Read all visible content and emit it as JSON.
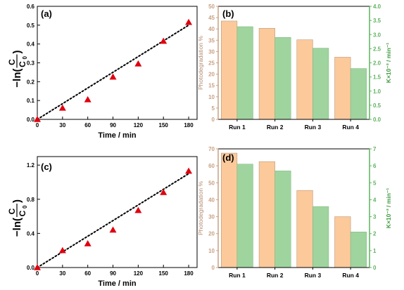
{
  "chart_data": [
    {
      "panel": "(a)",
      "type": "scatter",
      "xlabel": "Time / min",
      "ylabel": {
        "prefix": "−ln(",
        "num": "C",
        "den": "C",
        "den_sub": "0",
        "suffix": ")"
      },
      "xlim": [
        0,
        190
      ],
      "ylim": [
        0,
        0.6
      ],
      "xticks": [
        "0",
        "30",
        "60",
        "90",
        "120",
        "150",
        "180"
      ],
      "xtick_values": [
        0,
        30,
        60,
        90,
        120,
        150,
        180
      ],
      "yticks": [
        "0.0",
        "0.1",
        "0.2",
        "0.3",
        "0.4",
        "0.5",
        "0.6"
      ],
      "ytick_values": [
        0.0,
        0.1,
        0.2,
        0.3,
        0.4,
        0.5,
        0.6
      ],
      "x": [
        0,
        30,
        60,
        90,
        120,
        150,
        180
      ],
      "y": [
        0.0,
        0.06,
        0.105,
        0.225,
        0.295,
        0.415,
        0.515
      ],
      "fit": {
        "x": [
          0,
          180
        ],
        "y": [
          0.0,
          0.5
        ]
      },
      "marker_color": "#e0000f",
      "fit_color": "#000000"
    },
    {
      "panel": "(b)",
      "type": "bar",
      "categories": [
        "Run 1",
        "Run 2",
        "Run 3",
        "Run 4"
      ],
      "ylabel_left": "Photodegradation %",
      "ylabel_right": "K×10⁻³ / min⁻¹",
      "ylim_left": [
        0,
        50
      ],
      "ylim_right": [
        0,
        4.0
      ],
      "yticks_left": [
        "0",
        "5",
        "10",
        "15",
        "20",
        "25",
        "30",
        "35",
        "40",
        "45",
        "50"
      ],
      "ytick_values_left": [
        0,
        5,
        10,
        15,
        20,
        25,
        30,
        35,
        40,
        45,
        50
      ],
      "yticks_right": [
        "0.0",
        "0.5",
        "1.0",
        "1.5",
        "2.0",
        "2.5",
        "3.0",
        "3.5",
        "4.0"
      ],
      "ytick_values_right": [
        0.0,
        0.5,
        1.0,
        1.5,
        2.0,
        2.5,
        3.0,
        3.5,
        4.0
      ],
      "series": [
        {
          "axis": "left",
          "color": "#fcc99b",
          "values": [
            43.5,
            40.3,
            35.2,
            27.5
          ]
        },
        {
          "axis": "right",
          "color": "#9fd49f",
          "values": [
            3.28,
            2.9,
            2.52,
            1.8
          ]
        }
      ]
    },
    {
      "panel": "(c)",
      "type": "scatter",
      "xlabel": "Time / min",
      "ylabel": {
        "prefix": "−ln(",
        "num": "C",
        "den": "C",
        "den_sub": "0",
        "suffix": ")"
      },
      "xlim": [
        0,
        190
      ],
      "ylim": [
        0,
        1.3
      ],
      "xticks": [
        "0",
        "30",
        "60",
        "90",
        "120",
        "150",
        "180"
      ],
      "xtick_values": [
        0,
        30,
        60,
        90,
        120,
        150,
        180
      ],
      "yticks": [
        "0.0",
        "0.4",
        "0.8",
        "1.2"
      ],
      "ytick_values": [
        0.0,
        0.4,
        0.8,
        1.2
      ],
      "x": [
        0,
        30,
        60,
        90,
        120,
        150,
        180
      ],
      "y": [
        0.0,
        0.2,
        0.28,
        0.44,
        0.67,
        0.88,
        1.13
      ],
      "fit": {
        "x": [
          0,
          180
        ],
        "y": [
          0.0,
          1.1
        ]
      },
      "marker_color": "#e0000f",
      "fit_color": "#000000"
    },
    {
      "panel": "(d)",
      "type": "bar",
      "categories": [
        "Run 1",
        "Run 2",
        "Run 3",
        "Run 4"
      ],
      "ylabel_left": "Photodegradation %",
      "ylabel_right": "K×10⁻³ / min⁻¹",
      "ylim_left": [
        0,
        70
      ],
      "ylim_right": [
        0,
        7
      ],
      "yticks_left": [
        "0",
        "10",
        "20",
        "30",
        "40",
        "50",
        "60",
        "70"
      ],
      "ytick_values_left": [
        0,
        10,
        20,
        30,
        40,
        50,
        60,
        70
      ],
      "yticks_right": [
        "0",
        "1",
        "2",
        "3",
        "4",
        "5",
        "6",
        "7"
      ],
      "ytick_values_right": [
        0,
        1,
        2,
        3,
        4,
        5,
        6,
        7
      ],
      "series": [
        {
          "axis": "left",
          "color": "#fcc99b",
          "values": [
            67.5,
            62.5,
            45.5,
            30.0
          ]
        },
        {
          "axis": "right",
          "color": "#9fd49f",
          "values": [
            6.1,
            5.7,
            3.6,
            2.1
          ]
        }
      ]
    }
  ]
}
